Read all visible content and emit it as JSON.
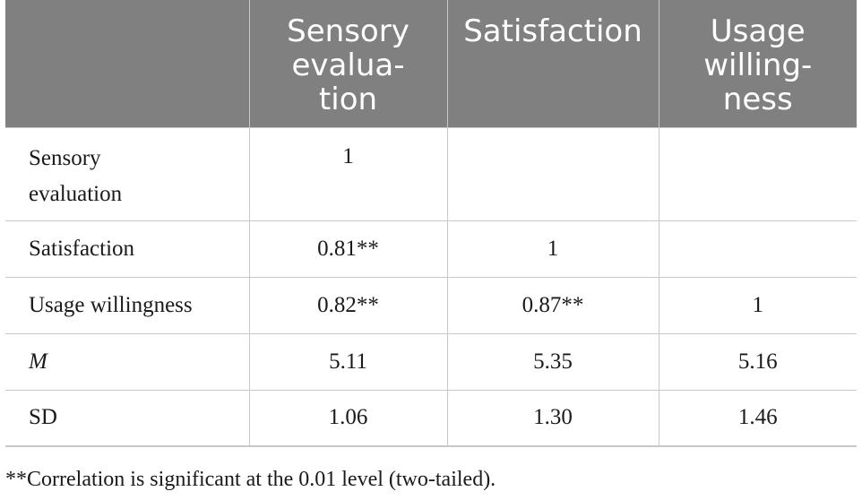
{
  "table": {
    "columns": [
      "",
      "Sensory evalua-tion",
      "Satisfaction",
      "Usage willing-ness"
    ],
    "header_lines": [
      [],
      [
        "Sensory",
        "evalua-",
        "tion"
      ],
      [
        "Satisfaction"
      ],
      [
        "Usage",
        "willing-",
        "ness"
      ]
    ],
    "rows": [
      {
        "label_lines": [
          "Sensory",
          "evaluation"
        ],
        "italic": false,
        "cells": [
          "1",
          "",
          ""
        ]
      },
      {
        "label_lines": [
          "Satisfaction"
        ],
        "italic": false,
        "cells": [
          "0.81**",
          "1",
          ""
        ]
      },
      {
        "label_lines": [
          "Usage willingness"
        ],
        "italic": false,
        "cells": [
          "0.82**",
          "0.87**",
          "1"
        ]
      },
      {
        "label_lines": [
          "M"
        ],
        "italic": true,
        "cells": [
          "5.11",
          "5.35",
          "5.16"
        ]
      },
      {
        "label_lines": [
          "SD"
        ],
        "italic": false,
        "cells": [
          "1.06",
          "1.30",
          "1.46"
        ]
      }
    ]
  },
  "footnote": "**Correlation is significant at the 0.01 level (two-tailed)."
}
